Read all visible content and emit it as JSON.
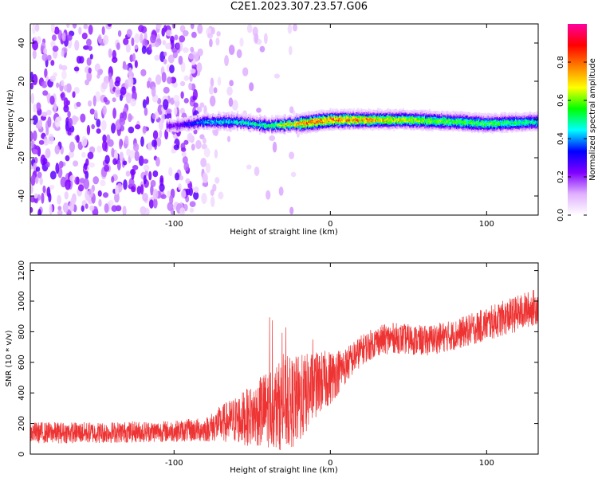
{
  "title": "C2E1.2023.307.23.57.G06",
  "colors": {
    "snr_line": "#ee3333",
    "axis": "#000000"
  },
  "chart_data": [
    {
      "type": "heatmap",
      "xlabel": "Height of straight line (km)",
      "ylabel": "Frequency (Hz)",
      "xlim": [
        -192,
        133
      ],
      "ylim": [
        -50,
        50
      ],
      "xticks": [
        -100,
        0,
        100
      ],
      "yticks": [
        -40,
        -20,
        0,
        20,
        40
      ],
      "colorbar": {
        "label": "Normalized spectral amplitude",
        "range": [
          0.0,
          1.0
        ],
        "ticks": [
          0.0,
          0.2,
          0.4,
          0.6,
          0.8
        ],
        "colormap": [
          "#ffffff",
          "#e0b0ff",
          "#8000ff",
          "#0000ff",
          "#00ffff",
          "#00ff00",
          "#ffff00",
          "#ff8000",
          "#ff0000",
          "#ff00a0"
        ]
      },
      "band": [
        {
          "x": -100,
          "freq": -3,
          "amplitude": 0.25
        },
        {
          "x": -80,
          "freq": -1,
          "amplitude": 0.45
        },
        {
          "x": -60,
          "freq": -1,
          "amplitude": 0.5
        },
        {
          "x": -40,
          "freq": -3,
          "amplitude": 0.55
        },
        {
          "x": -20,
          "freq": -2,
          "amplitude": 0.85
        },
        {
          "x": 0,
          "freq": 0,
          "amplitude": 0.85
        },
        {
          "x": 20,
          "freq": 0,
          "amplitude": 0.8
        },
        {
          "x": 50,
          "freq": 0,
          "amplitude": 0.7
        },
        {
          "x": 80,
          "freq": -1,
          "amplitude": 0.6
        },
        {
          "x": 100,
          "freq": -2,
          "amplitude": 0.6
        },
        {
          "x": 133,
          "freq": -1,
          "amplitude": 0.5
        }
      ]
    },
    {
      "type": "line",
      "xlabel": "Height of straight line (km)",
      "ylabel": "SNR (10 * v/v)",
      "xlim": [
        -192,
        133
      ],
      "ylim": [
        0,
        1250
      ],
      "xticks": [
        -100,
        0,
        100
      ],
      "yticks": [
        0,
        200,
        400,
        600,
        800,
        1000,
        1200
      ],
      "trend_x": [
        -192,
        -150,
        -100,
        -80,
        -70,
        -50,
        -40,
        -30,
        -20,
        -10,
        0,
        10,
        20,
        30,
        40,
        60,
        80,
        100,
        120,
        133
      ],
      "trend_y": [
        140,
        140,
        150,
        160,
        200,
        250,
        300,
        320,
        350,
        450,
        500,
        580,
        680,
        740,
        760,
        740,
        780,
        850,
        920,
        970
      ],
      "noise": [
        70,
        70,
        70,
        80,
        120,
        200,
        260,
        300,
        300,
        220,
        180,
        120,
        100,
        100,
        100,
        100,
        100,
        110,
        120,
        120
      ]
    }
  ]
}
